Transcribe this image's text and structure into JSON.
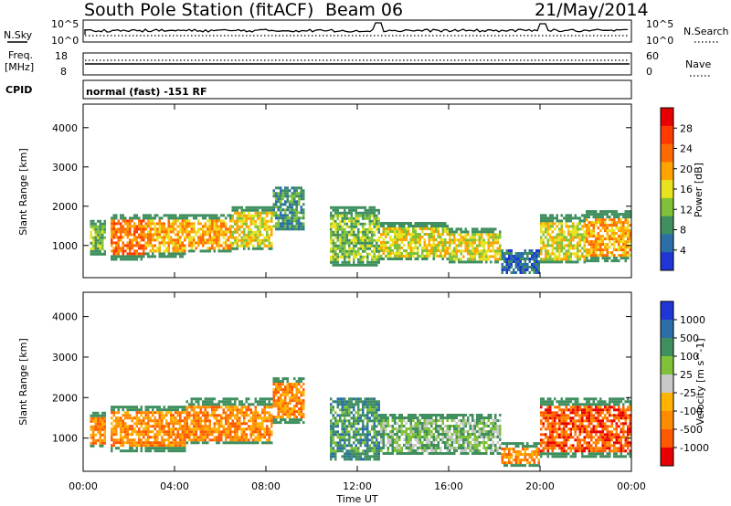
{
  "header": {
    "station": "South Pole Station (fitACF)",
    "beam": "Beam 06",
    "date": "21/May/2014"
  },
  "top_panels": {
    "nsky_label": "N.Sky",
    "nsky_ticks": [
      "10^5",
      "10^0"
    ],
    "nsearch_label": "N.Search",
    "nsearch_ticks": [
      "10^5",
      "10^0"
    ],
    "freq_label": "Freq.",
    "freq_unit": "[MHz]",
    "freq_ticks": [
      "18",
      "8"
    ],
    "nave_label": "Nave",
    "nave_ticks": [
      "60",
      "0"
    ],
    "cpid_label": "CPID",
    "cpid_text": "normal (fast) -151 RF"
  },
  "x_axis": {
    "label": "Time UT",
    "ticks": [
      "00:00",
      "04:00",
      "08:00",
      "12:00",
      "16:00",
      "20:00",
      "00:00"
    ]
  },
  "colors": {
    "power_scale": [
      "#1f35d6",
      "#2a6fa8",
      "#3f8f5f",
      "#7fc23a",
      "#e9e21e",
      "#ffa300",
      "#ff6a00",
      "#ff3a00",
      "#e80000"
    ],
    "velocity_scale": [
      "#1f35d6",
      "#2a6fa8",
      "#3f8f5f",
      "#7fc23a",
      "#c8c8c8",
      "#ffb300",
      "#ff8c00",
      "#ff5a00",
      "#e80000"
    ]
  },
  "chart_data": [
    {
      "type": "heatmap",
      "panel": "power",
      "xlabel": "Time UT",
      "ylabel": "Slant Range [km]",
      "x_range_hours": [
        0,
        24
      ],
      "ylim": [
        180,
        4600
      ],
      "yticks": [
        1000,
        2000,
        3000,
        4000
      ],
      "colorbar_label": "Power [dB]",
      "colorbar_ticks": [
        "4",
        "8",
        "12",
        "16",
        "20",
        "24",
        "28"
      ],
      "echo_regions": [
        {
          "t_start": 0.3,
          "t_end": 1.0,
          "r_low": 800,
          "r_high": 1650,
          "level": 3
        },
        {
          "t_start": 1.2,
          "t_end": 2.7,
          "r_low": 680,
          "r_high": 1800,
          "level": 6
        },
        {
          "t_start": 2.7,
          "t_end": 4.5,
          "r_low": 720,
          "r_high": 1800,
          "level": 5
        },
        {
          "t_start": 4.5,
          "t_end": 6.5,
          "r_low": 850,
          "r_high": 1800,
          "level": 5
        },
        {
          "t_start": 6.5,
          "t_end": 8.3,
          "r_low": 900,
          "r_high": 2000,
          "level": 4
        },
        {
          "t_start": 8.3,
          "t_end": 9.7,
          "r_low": 1400,
          "r_high": 2500,
          "level": 2
        },
        {
          "t_start": 10.8,
          "t_end": 13.0,
          "r_low": 500,
          "r_high": 2000,
          "level": 3
        },
        {
          "t_start": 13.0,
          "t_end": 16.0,
          "r_low": 650,
          "r_high": 1600,
          "level": 4
        },
        {
          "t_start": 16.0,
          "t_end": 18.3,
          "r_low": 580,
          "r_high": 1450,
          "level": 4
        },
        {
          "t_start": 18.3,
          "t_end": 20.0,
          "r_low": 300,
          "r_high": 900,
          "level": 1
        },
        {
          "t_start": 20.0,
          "t_end": 22.0,
          "r_low": 550,
          "r_high": 1800,
          "level": 4
        },
        {
          "t_start": 22.0,
          "t_end": 24.0,
          "r_low": 600,
          "r_high": 1900,
          "level": 5
        }
      ]
    },
    {
      "type": "heatmap",
      "panel": "velocity",
      "xlabel": "Time UT",
      "ylabel": "Slant Range [km]",
      "x_range_hours": [
        0,
        24
      ],
      "ylim": [
        180,
        4600
      ],
      "yticks": [
        1000,
        2000,
        3000,
        4000
      ],
      "colorbar_label": "Velocity [m s^-1]",
      "colorbar_ticks": [
        "1000",
        "500",
        "100",
        "25",
        "-25",
        "-100",
        "-500",
        "-1000"
      ],
      "echo_regions": [
        {
          "t_start": 0.3,
          "t_end": 1.0,
          "r_low": 800,
          "r_high": 1650,
          "level": 6
        },
        {
          "t_start": 1.2,
          "t_end": 4.5,
          "r_low": 680,
          "r_high": 1800,
          "level": 6
        },
        {
          "t_start": 4.5,
          "t_end": 8.3,
          "r_low": 850,
          "r_high": 2000,
          "level": 6
        },
        {
          "t_start": 8.3,
          "t_end": 9.7,
          "r_low": 1400,
          "r_high": 2500,
          "level": 6
        },
        {
          "t_start": 10.8,
          "t_end": 13.0,
          "r_low": 500,
          "r_high": 2000,
          "level": 2
        },
        {
          "t_start": 13.0,
          "t_end": 18.3,
          "r_low": 600,
          "r_high": 1600,
          "level": 3
        },
        {
          "t_start": 18.3,
          "t_end": 20.0,
          "r_low": 300,
          "r_high": 900,
          "level": 6
        },
        {
          "t_start": 20.0,
          "t_end": 24.0,
          "r_low": 550,
          "r_high": 2000,
          "level": 7
        }
      ]
    }
  ]
}
